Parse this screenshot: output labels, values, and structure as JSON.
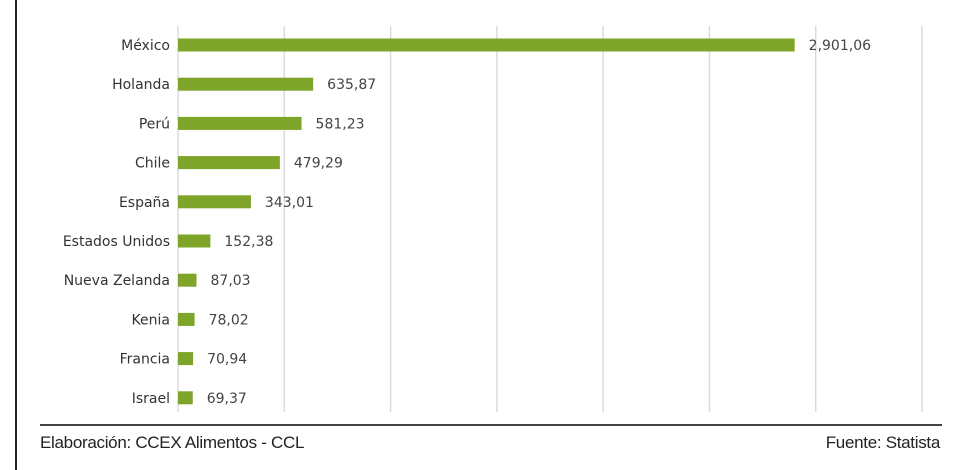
{
  "chart_data": {
    "type": "bar",
    "orientation": "horizontal",
    "categories": [
      "México",
      "Holanda",
      "Perú",
      "Chile",
      "España",
      "Estados Unidos",
      "Nueva Zelanda",
      "Kenia",
      "Francia",
      "Israel"
    ],
    "values": [
      2901.06,
      635.87,
      581.23,
      479.29,
      343.01,
      152.38,
      87.03,
      78.02,
      70.94,
      69.37
    ],
    "value_labels": [
      "2,901,06",
      "635,87",
      "581,23",
      "479,29",
      "343,01",
      "152,38",
      "87,03",
      "78,02",
      "70,94",
      "69,37"
    ],
    "xlim": [
      0,
      3500
    ],
    "grid": true,
    "bar_color": "#7ea42a"
  },
  "footer": {
    "source_left": "Elaboración: CCEX Alimentos - CCL",
    "source_right": "Fuente: Statista"
  }
}
